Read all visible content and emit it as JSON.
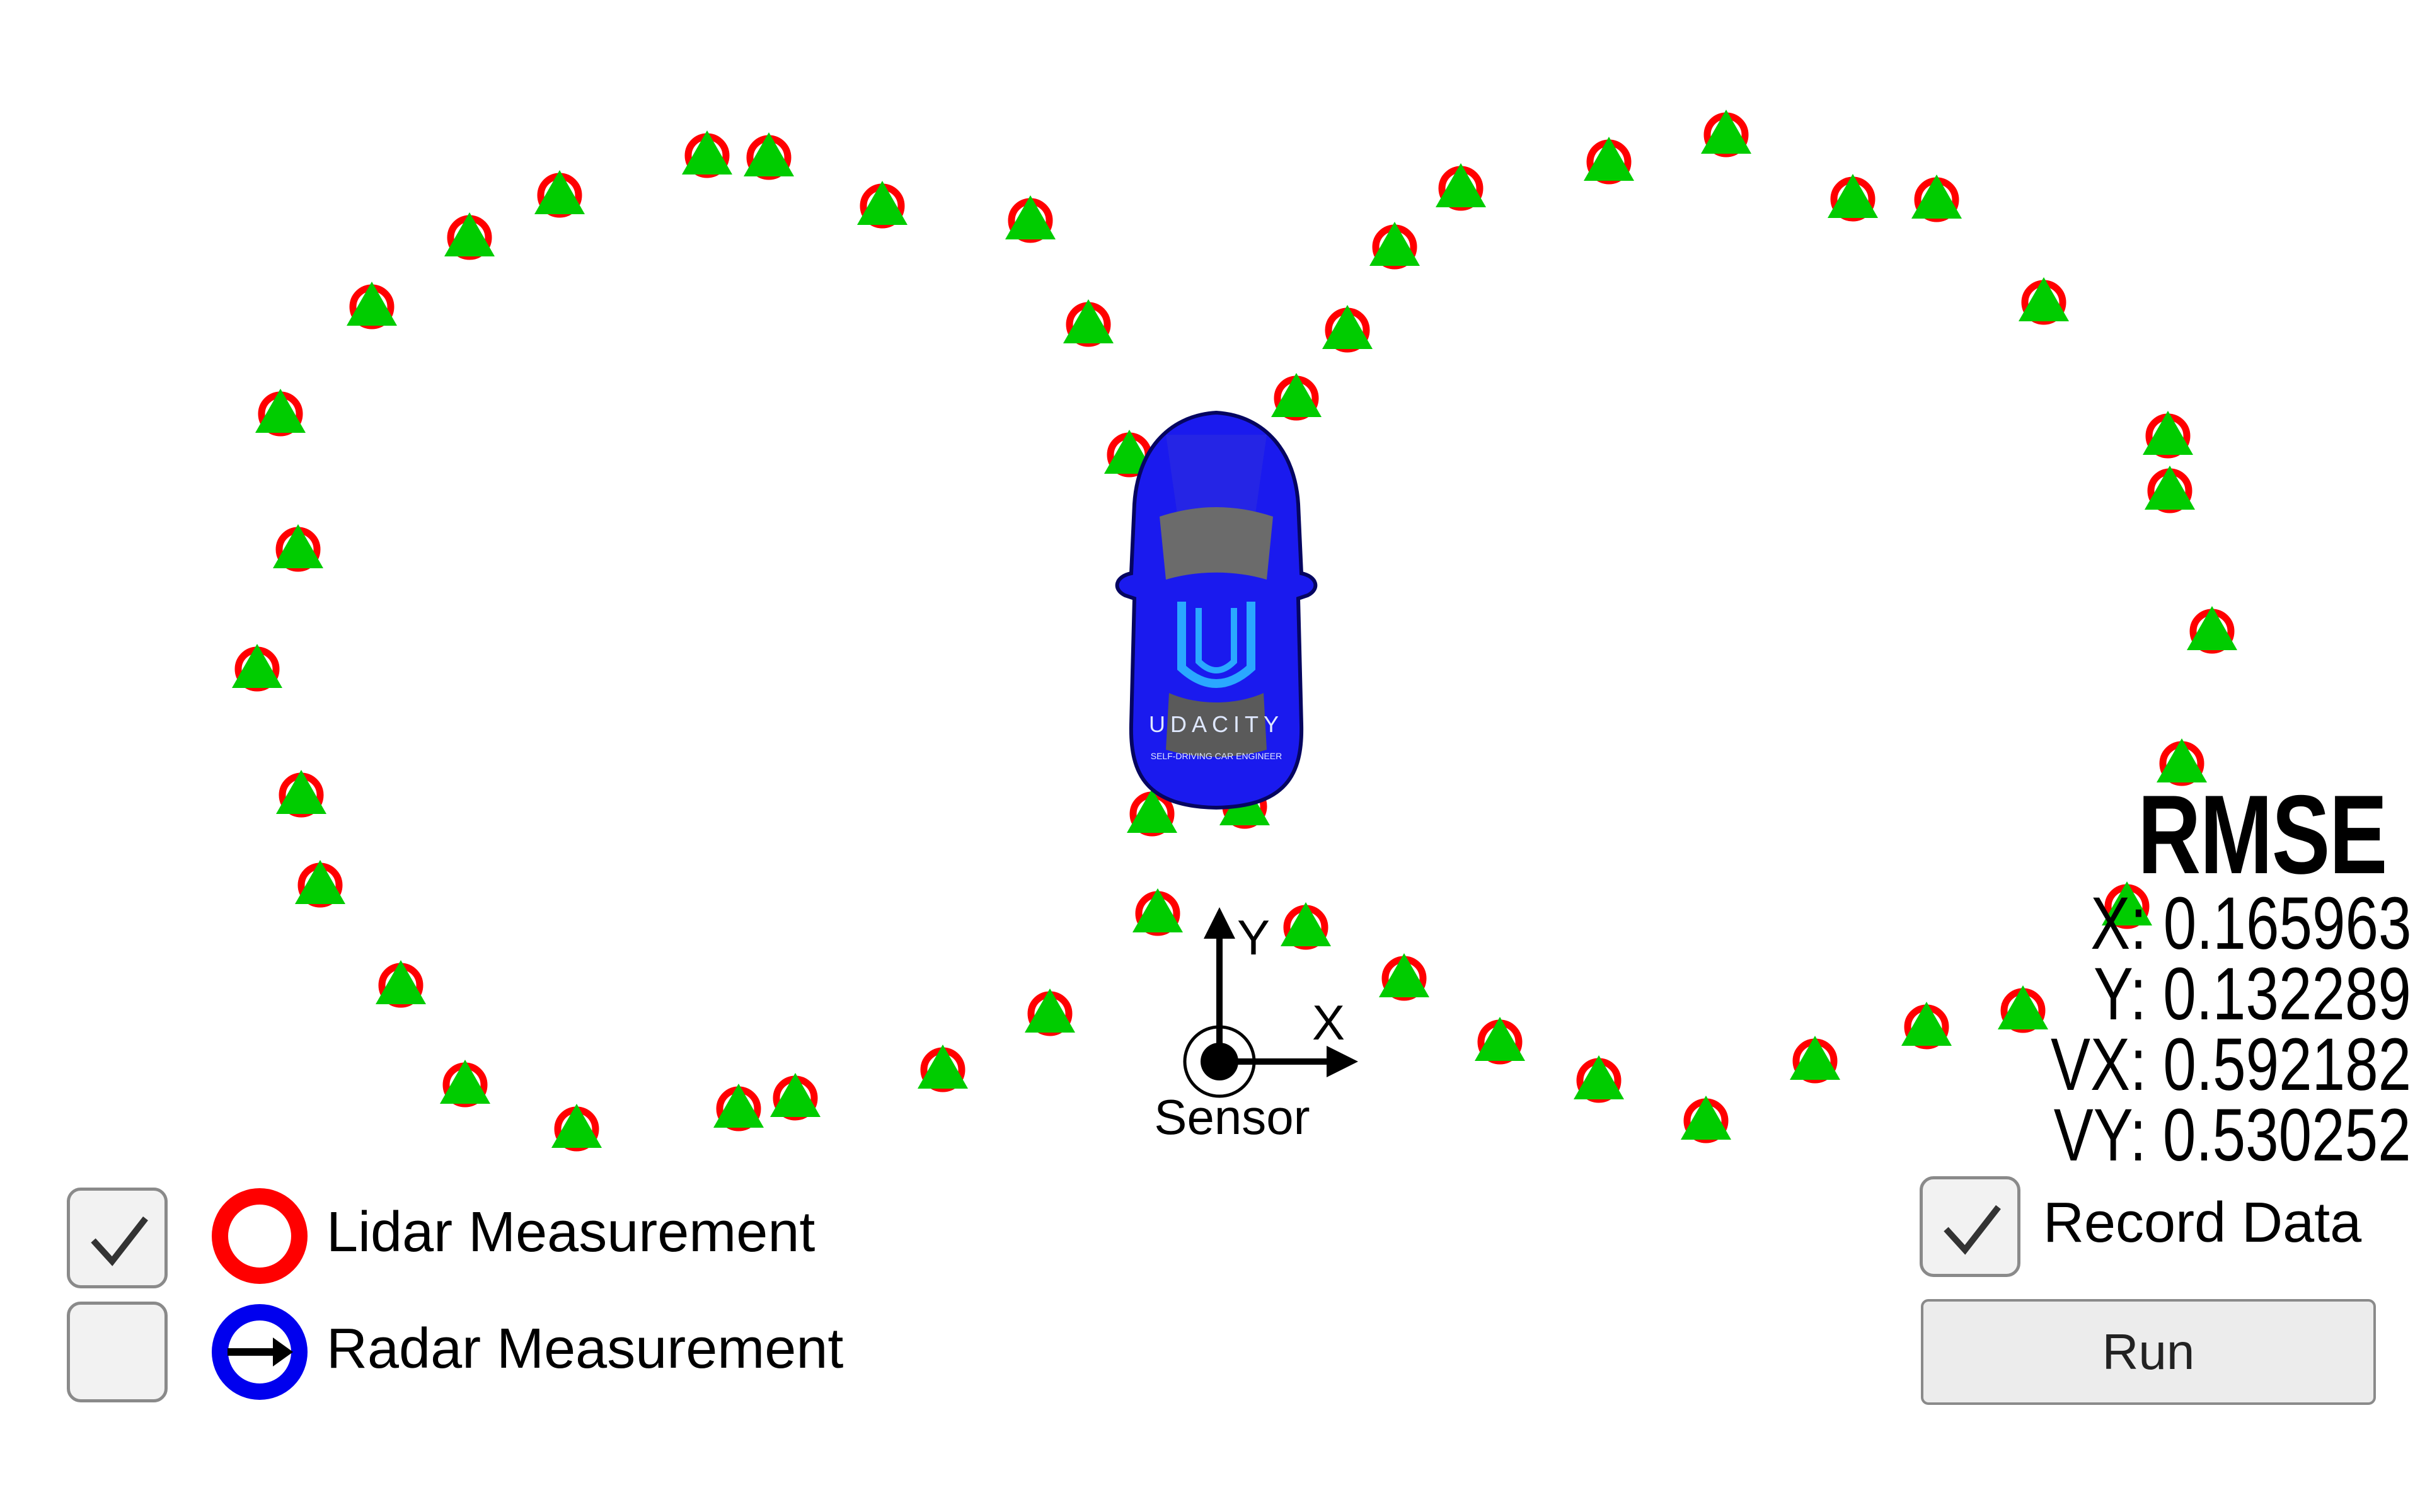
{
  "scene": {
    "sensor_label": "Sensor",
    "axis_x_label": "X",
    "axis_y_label": "Y",
    "car_brand": "UDACITY",
    "car_tagline": "SELF-DRIVING CAR ENGINEER",
    "colors": {
      "lidar": "#ff0000",
      "radar": "#0000ee",
      "estimate": "#00cc00",
      "car": "#1a1aee",
      "car_logo": "#2aa8ff"
    },
    "icons": [
      "car-icon",
      "sensor-icon",
      "lidar-circle-icon",
      "estimate-triangle-icon"
    ]
  },
  "legend": {
    "lidar": {
      "label": "Lidar Measurement",
      "checked": true
    },
    "radar": {
      "label": "Radar Measurement",
      "checked": false
    }
  },
  "rmse": {
    "title": "RMSE",
    "x": "X: 0.165963",
    "y": "Y: 0.132289",
    "vx": "VX: 0.592182",
    "vy": "VY: 0.530252"
  },
  "record": {
    "label": "Record Data",
    "checked": true
  },
  "run_label": "Run"
}
